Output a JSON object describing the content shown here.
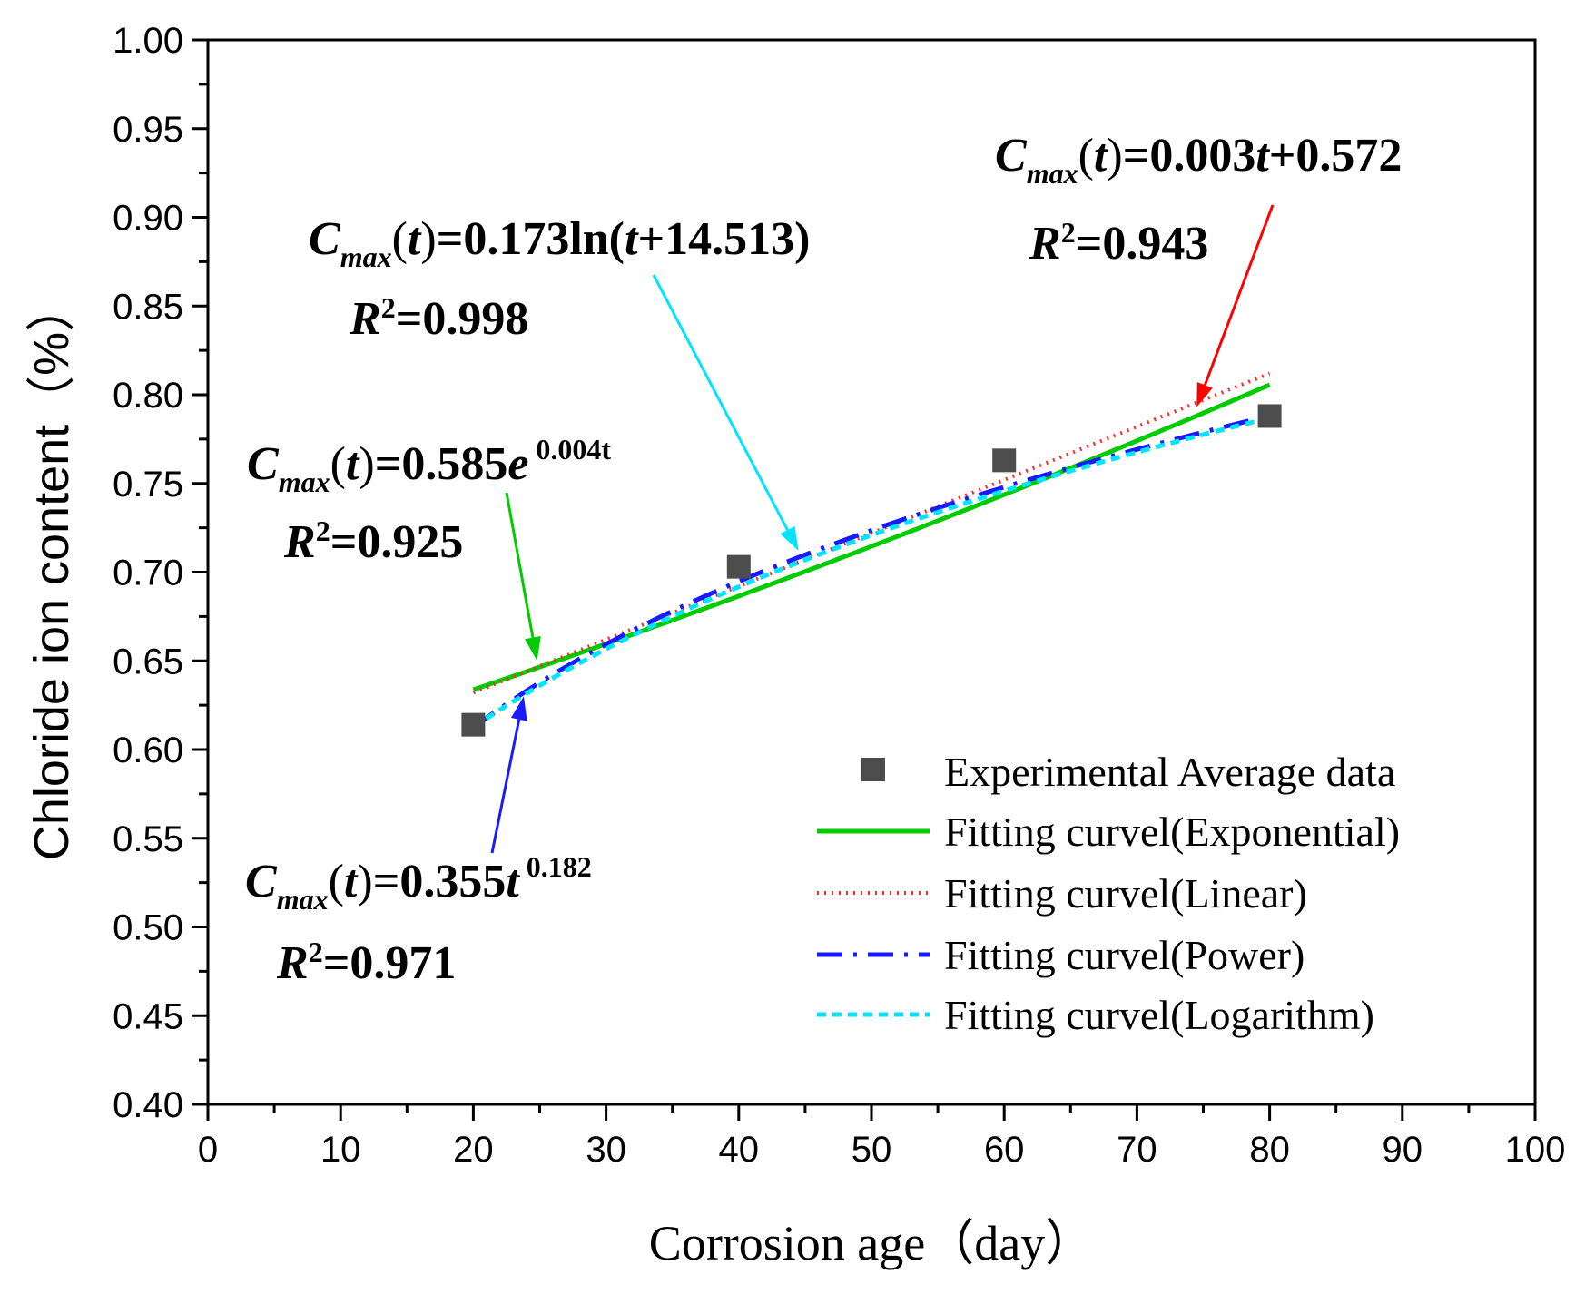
{
  "chart_data": {
    "type": "line",
    "xlabel": "Corrosion age（day）",
    "ylabel": "Chloride ion content（%）",
    "xlim": [
      0,
      100
    ],
    "ylim": [
      0.4,
      1.0
    ],
    "x_ticks": [
      "0",
      "10",
      "20",
      "30",
      "40",
      "50",
      "60",
      "70",
      "80",
      "90",
      "100"
    ],
    "y_ticks": [
      "0.40",
      "0.45",
      "0.50",
      "0.55",
      "0.60",
      "0.65",
      "0.70",
      "0.75",
      "0.80",
      "0.85",
      "0.90",
      "0.95",
      "1.00"
    ],
    "experimental": {
      "name": "Experimental Average data",
      "color": "#4d4d4d",
      "x": [
        20,
        40,
        60,
        80
      ],
      "y": [
        0.614,
        0.703,
        0.763,
        0.788
      ]
    },
    "series": [
      {
        "name": "Fitting curvel(Exponential)",
        "model": "exponential",
        "a": 0.585,
        "b": 0.004,
        "color": "#00cc00",
        "style": "solid",
        "x_range": [
          20,
          80
        ]
      },
      {
        "name": "Fitting curvel(Linear)",
        "model": "linear",
        "a": 0.003,
        "b": 0.572,
        "color": "#ff2a2a",
        "style": "dotted",
        "x_range": [
          20,
          80
        ]
      },
      {
        "name": "Fitting curvel(Power)",
        "model": "power",
        "a": 0.355,
        "b": 0.182,
        "color": "#1a1aff",
        "style": "dashdot",
        "x_range": [
          20,
          80
        ]
      },
      {
        "name": "Fitting curvel(Logarithm)",
        "model": "logarithm",
        "a": 0.173,
        "b": 14.513,
        "color": "#00e5ff",
        "style": "shortdash",
        "x_range": [
          20,
          80
        ]
      }
    ],
    "annotations": [
      {
        "name": "linear",
        "main": "C_max(t)=0.003t+0.572",
        "r2": "R²=0.943",
        "color": "#ff0000",
        "tex": {
          "c": "C",
          "sub": "max",
          "t_open": "(",
          "t": "t",
          "t_close": ")",
          "eq": "=0.003",
          "var": "t",
          "rest": "+0.572",
          "r": "R",
          "r_sup": "2",
          "r_val": "=0.943"
        }
      },
      {
        "name": "logarithm",
        "main": "C_max(t)=0.173ln(t+14.513)",
        "r2": "R²=0.998",
        "color": "#00e5ff",
        "tex": {
          "c": "C",
          "sub": "max",
          "t_open": "(",
          "t": "t",
          "t_close": ")",
          "eq": "=0.173ln(",
          "var": "t",
          "rest": "+14.513)",
          "r": "R",
          "r_sup": "2",
          "r_val": "=0.998"
        }
      },
      {
        "name": "exponential",
        "main": "C_max(t)=0.585e^0.004t",
        "r2": "R²=0.925",
        "color": "#00cc00",
        "tex": {
          "c": "C",
          "sub": "max",
          "t_open": "(",
          "t": "t",
          "t_close": ")",
          "eq": "=0.585",
          "var": "e",
          "sup": " 0.004t",
          "r": "R",
          "r_sup": "2",
          "r_val": "=0.925"
        }
      },
      {
        "name": "power",
        "main": "C_max(t)=0.355t^0.182",
        "r2": "R²=0.971",
        "color": "#1a1aff",
        "tex": {
          "c": "C",
          "sub": "max",
          "t_open": "(",
          "t": "t",
          "t_close": ")",
          "eq": "=0.355",
          "var": "t",
          "sup": " 0.182",
          "r": "R",
          "r_sup": "2",
          "r_val": "=0.971"
        }
      }
    ],
    "legend_position": "bottom-right"
  }
}
